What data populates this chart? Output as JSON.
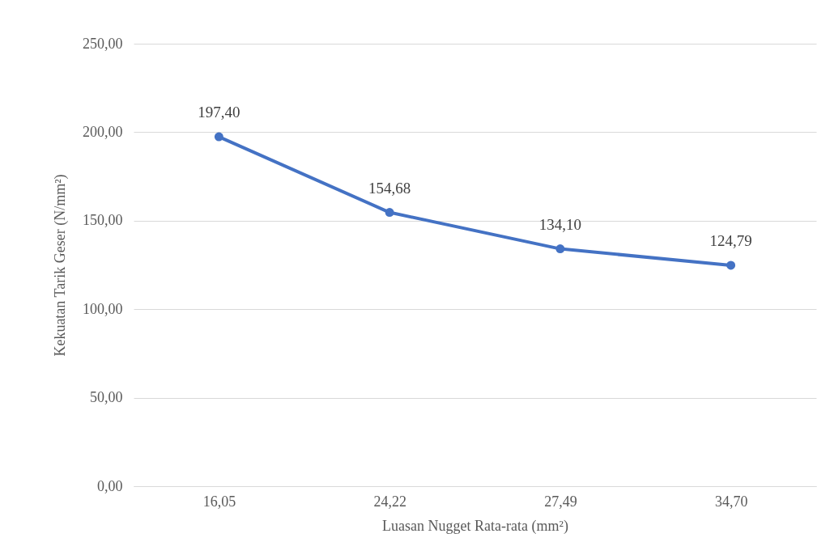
{
  "chart_data": {
    "type": "line",
    "xlabel": "Luasan Nugget Rata-rata (mm²)",
    "ylabel": "Kekuatan Tarik Geser (N/mm²)",
    "categories": [
      "16,05",
      "24,22",
      "27,49",
      "34,70"
    ],
    "series": [
      {
        "color": "#4472c4",
        "values": [
          197.4,
          154.68,
          134.1,
          124.79
        ],
        "value_labels": [
          "197,40",
          "154,68",
          "134,10",
          "124,79"
        ]
      }
    ],
    "ylim": [
      0,
      250
    ],
    "yticks": [
      {
        "value": 0,
        "label": "0,00"
      },
      {
        "value": 50,
        "label": "50,00"
      },
      {
        "value": 100,
        "label": "100,00"
      },
      {
        "value": 150,
        "label": "150,00"
      },
      {
        "value": 200,
        "label": "200,00"
      },
      {
        "value": 250,
        "label": "250,00"
      }
    ],
    "grid": "y",
    "marker": "circle",
    "line_style": "solid"
  }
}
